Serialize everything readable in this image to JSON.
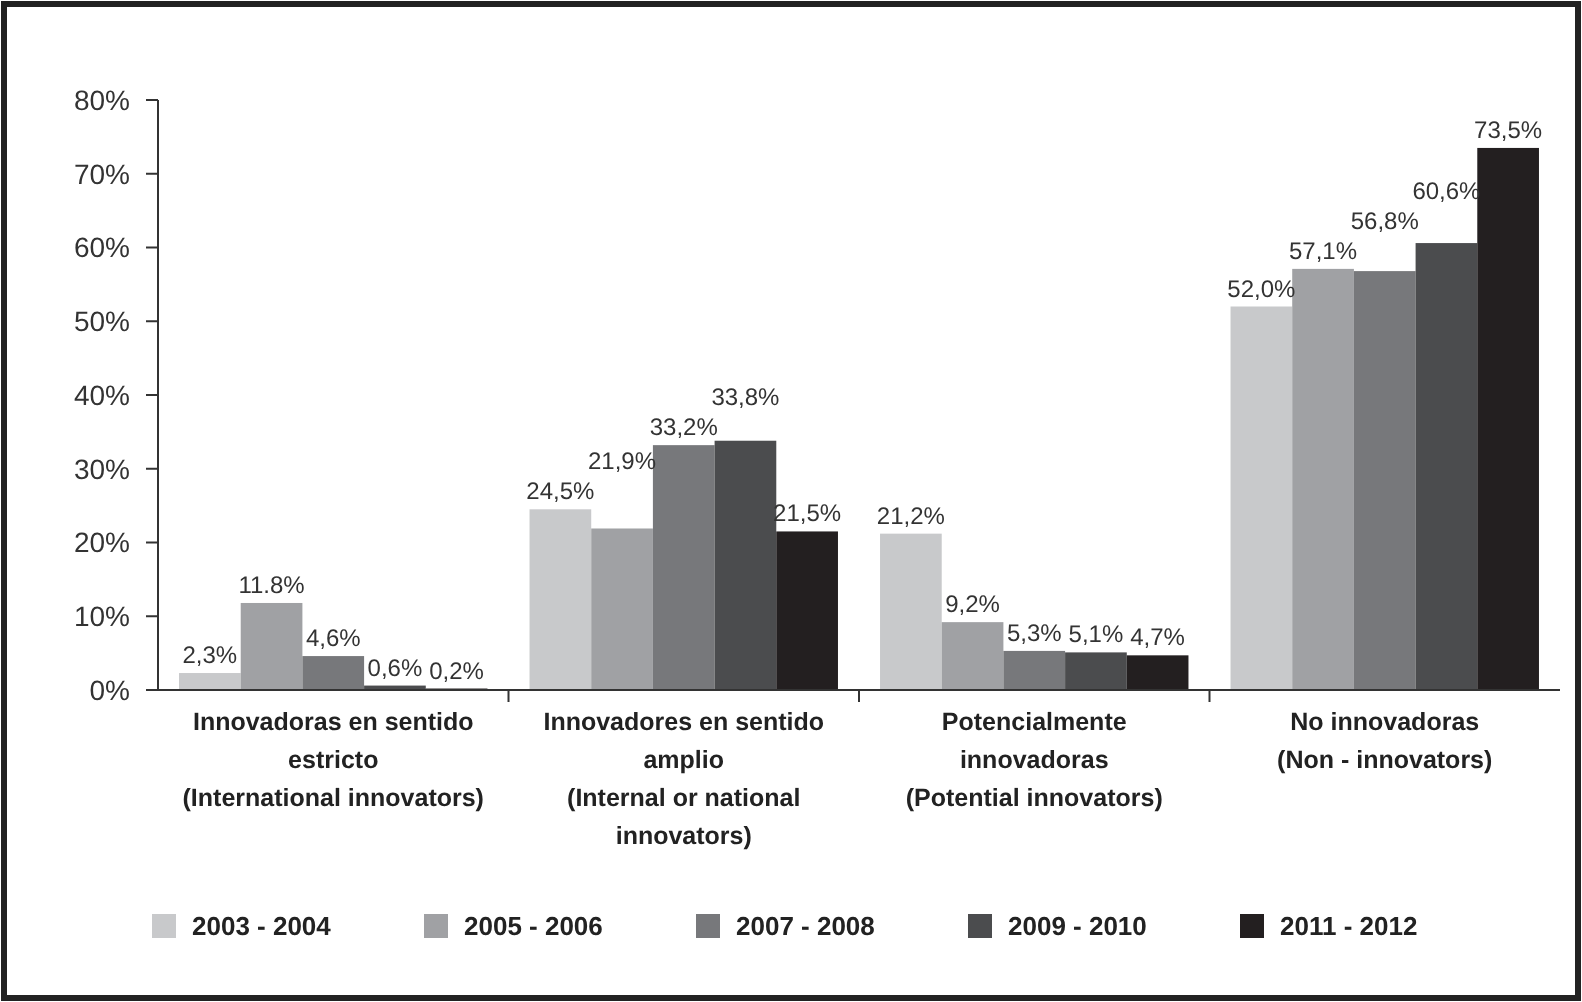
{
  "chart_data": {
    "type": "bar",
    "categories": [
      "Innovadoras en sentido\nestricto\n(International innovators)",
      "Innovadores en sentido\namplio\n(Internal or national\ninnovators)",
      "Potencialmente\ninnovadoras\n(Potential innovators)",
      "No innovadoras\n(Non - innovators)"
    ],
    "series": [
      {
        "name": "2003 - 2004",
        "color": "#c8c9cb",
        "values": [
          2.3,
          24.5,
          21.2,
          52.0
        ],
        "value_labels": [
          "2,3%",
          "24,5%",
          "21,2%",
          "52,0%"
        ]
      },
      {
        "name": "2005 - 2006",
        "color": "#a0a1a4",
        "values": [
          11.8,
          21.9,
          9.2,
          57.1
        ],
        "value_labels": [
          "11.8%",
          "21,9%",
          "9,2%",
          "57,1%"
        ]
      },
      {
        "name": "2007 - 2008",
        "color": "#77787b",
        "values": [
          4.6,
          33.2,
          5.3,
          56.8
        ],
        "value_labels": [
          "4,6%",
          "33,2%",
          "5,3%",
          "56,8%"
        ]
      },
      {
        "name": "2009 - 2010",
        "color": "#4b4c4e",
        "values": [
          0.6,
          33.8,
          5.1,
          60.6
        ],
        "value_labels": [
          "0,6%",
          "33,8%",
          "5,1%",
          "60,6%"
        ]
      },
      {
        "name": "2011 - 2012",
        "color": "#231f20",
        "values": [
          0.2,
          21.5,
          4.7,
          73.5
        ],
        "value_labels": [
          "0,2%",
          "21,5%",
          "4,7%",
          "73,5%"
        ]
      }
    ],
    "ylim": [
      0,
      80
    ],
    "yticks": [
      {
        "value": 0,
        "label": "0%"
      },
      {
        "value": 10,
        "label": "10%"
      },
      {
        "value": 20,
        "label": "20%"
      },
      {
        "value": 30,
        "label": "30%"
      },
      {
        "value": 40,
        "label": "40%"
      },
      {
        "value": 50,
        "label": "50%"
      },
      {
        "value": 60,
        "label": "60%"
      },
      {
        "value": 70,
        "label": "70%"
      },
      {
        "value": 80,
        "label": "80%"
      }
    ],
    "grid": false,
    "legend": "bottom"
  }
}
